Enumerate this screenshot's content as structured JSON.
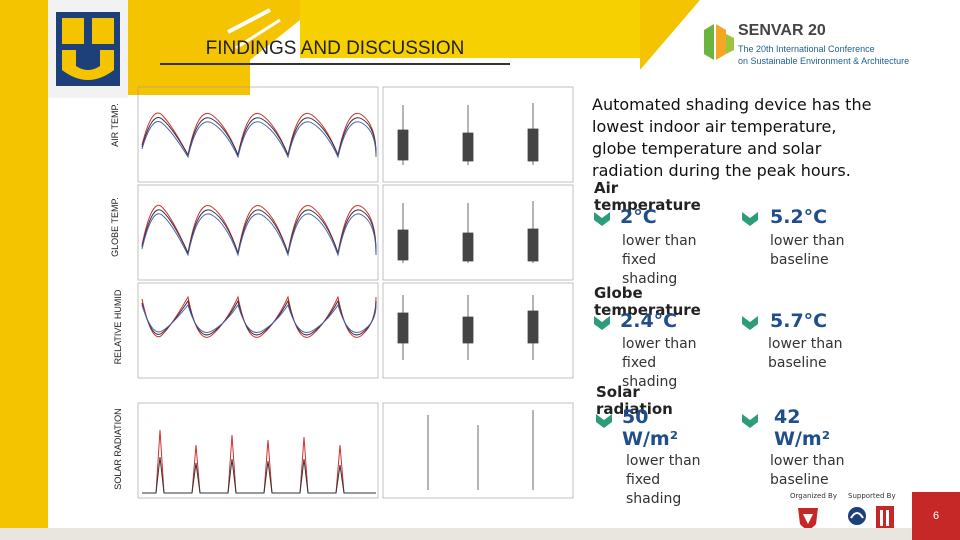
{
  "header": {
    "title": "FINDINGS AND DISCUSSION",
    "conference_name": "SENVAR 20",
    "conference_subtitle_1": "The 20th International Conference",
    "conference_subtitle_2": "on Sustainable Environment & Architecture"
  },
  "chart_labels": {
    "air_temp": "AIR TEMP.",
    "globe_temp": "GLOBE TEMP.",
    "relative_humid": "RELATIVE HUMID",
    "solar_radiation": "SOLAR RADIATION"
  },
  "findings": {
    "headline": "Automated shading device has the lowest indoor air temperature, globe temperature and solar radiation during the peak hours.",
    "rows": [
      {
        "category": "Air temperature",
        "left_value": "2°C",
        "left_desc": "lower than fixed shading",
        "right_value": "5.2°C",
        "right_desc": "lower than baseline"
      },
      {
        "category": "Globe temperature",
        "left_value": "2.4°C",
        "left_desc": "lower than fixed shading",
        "right_value": "5.7°C",
        "right_desc": "lower than baseline"
      },
      {
        "category": "Solar radiation",
        "left_value": "50 W/m²",
        "left_desc": "lower than fixed shading",
        "right_value": "42 W/m²",
        "right_desc": "lower than baseline"
      }
    ]
  },
  "footer": {
    "organized_by": "Organized By",
    "supported_by": "Supported By",
    "page_number": "6"
  },
  "colors": {
    "accent_yellow": "#f5c400",
    "value_blue": "#1f4e8a",
    "chevron_green": "#2e9c7a",
    "page_red": "#c62828"
  }
}
